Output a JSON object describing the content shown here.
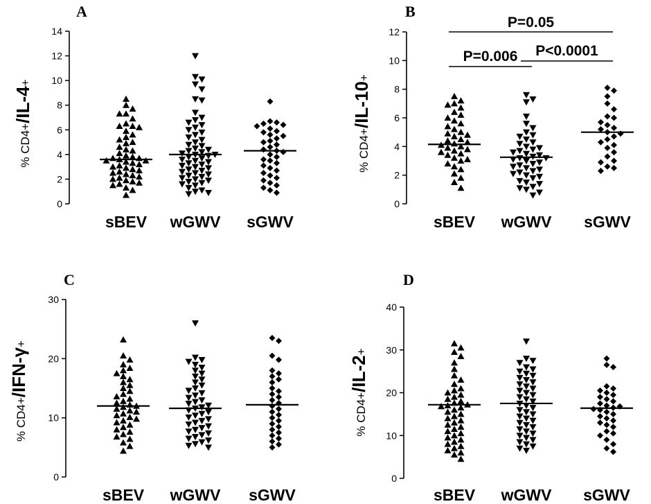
{
  "chart_data": [
    {
      "panel": "A",
      "type": "scatter",
      "ylabel": {
        "prefix": "% CD4+",
        "main": "/IL-4",
        "suffix": "+"
      },
      "categories": [
        "sBEV",
        "wGWV",
        "sGWV"
      ],
      "ylim": [
        0,
        14
      ],
      "yticks": [
        0,
        2,
        4,
        6,
        8,
        10,
        12,
        14
      ],
      "markers": [
        "triangle-up",
        "triangle-down",
        "diamond"
      ],
      "medians": [
        3.6,
        4.0,
        4.3
      ],
      "series": [
        {
          "values": [
            8.5,
            8.0,
            7.7,
            7.3,
            7.3,
            6.9,
            6.5,
            6.3,
            6.3,
            6.2,
            5.9,
            5.6,
            5.4,
            5.2,
            5.0,
            4.9,
            4.6,
            4.4,
            4.3,
            4.1,
            3.9,
            3.8,
            3.7,
            3.7,
            3.6,
            3.5,
            3.5,
            3.4,
            3.3,
            3.2,
            3.1,
            3.0,
            2.9,
            2.8,
            2.7,
            2.6,
            2.5,
            2.4,
            2.3,
            2.2,
            2.1,
            2.0,
            1.9,
            1.8,
            1.7,
            1.6,
            1.5,
            1.3,
            1.1,
            0.7
          ]
        },
        {
          "values": [
            12.0,
            10.3,
            10.1,
            9.7,
            9.3,
            8.5,
            8.4,
            7.4,
            7.0,
            6.8,
            6.6,
            6.4,
            6.2,
            6.0,
            5.8,
            5.6,
            5.4,
            5.2,
            5.0,
            4.8,
            4.7,
            4.5,
            4.4,
            4.3,
            4.2,
            4.1,
            4.0,
            4.0,
            3.9,
            3.8,
            3.7,
            3.6,
            3.5,
            3.4,
            3.3,
            3.2,
            3.1,
            3.0,
            2.9,
            2.8,
            2.7,
            2.6,
            2.5,
            2.4,
            2.3,
            2.2,
            2.1,
            2.0,
            1.9,
            1.8,
            1.7,
            1.6,
            1.5,
            1.3,
            1.1,
            1.0,
            0.9,
            0.8
          ]
        },
        {
          "values": [
            8.3,
            6.7,
            6.6,
            6.5,
            6.4,
            6.3,
            6.1,
            5.9,
            5.8,
            5.6,
            5.5,
            5.3,
            5.1,
            5.0,
            4.8,
            4.6,
            4.4,
            4.3,
            4.2,
            4.0,
            3.8,
            3.6,
            3.5,
            3.3,
            3.1,
            2.9,
            2.7,
            2.5,
            2.3,
            2.1,
            1.9,
            1.7,
            1.5,
            1.3,
            1.1,
            0.9
          ]
        }
      ],
      "annotations": []
    },
    {
      "panel": "B",
      "type": "scatter",
      "ylabel": {
        "prefix": "% CD4+",
        "main": "/IL-10",
        "suffix": "+"
      },
      "categories": [
        "sBEV",
        "wGWV",
        "sGWV"
      ],
      "ylim": [
        0,
        12
      ],
      "yticks": [
        0,
        2,
        4,
        6,
        8,
        10,
        12
      ],
      "markers": [
        "triangle-up",
        "triangle-down",
        "diamond"
      ],
      "medians": [
        4.15,
        3.25,
        5.0
      ],
      "series": [
        {
          "values": [
            7.5,
            7.2,
            7.0,
            6.9,
            6.7,
            6.4,
            6.2,
            6.0,
            5.8,
            5.6,
            5.4,
            5.2,
            5.0,
            4.9,
            4.8,
            4.7,
            4.5,
            4.4,
            4.3,
            4.2,
            4.1,
            4.0,
            3.9,
            3.8,
            3.7,
            3.6,
            3.5,
            3.4,
            3.2,
            3.1,
            3.0,
            2.8,
            2.6,
            2.4,
            2.1,
            1.8,
            1.5,
            1.1
          ]
        },
        {
          "values": [
            7.6,
            7.3,
            7.1,
            6.1,
            5.6,
            5.3,
            5.0,
            4.8,
            4.7,
            4.5,
            4.3,
            4.2,
            4.0,
            3.9,
            3.8,
            3.7,
            3.6,
            3.5,
            3.4,
            3.3,
            3.2,
            3.2,
            3.1,
            3.0,
            2.9,
            2.8,
            2.7,
            2.6,
            2.5,
            2.4,
            2.3,
            2.2,
            2.1,
            2.0,
            1.9,
            1.8,
            1.6,
            1.5,
            1.4,
            1.2,
            1.1,
            1.0,
            0.8,
            0.6
          ]
        },
        {
          "values": [
            8.1,
            7.9,
            7.5,
            7.0,
            6.6,
            6.1,
            6.0,
            5.7,
            5.5,
            5.3,
            5.2,
            5.0,
            4.9,
            4.7,
            4.5,
            4.3,
            4.1,
            3.9,
            3.6,
            3.3,
            3.0,
            2.9,
            2.6,
            2.5,
            2.3
          ]
        }
      ],
      "annotations": [
        {
          "text": "P=0.05",
          "from": 0,
          "to": 2,
          "y": 11.9
        },
        {
          "text": "P=0.006",
          "from": 0,
          "to": 1,
          "y": 9.7
        },
        {
          "text": "P<0.0001",
          "from": 1,
          "to": 2,
          "y": 10.2
        }
      ]
    },
    {
      "panel": "C",
      "type": "scatter",
      "ylabel": {
        "prefix": "% CD4+",
        "main": "/IFN-γ",
        "suffix": "+"
      },
      "categories": [
        "sBEV",
        "wGWV",
        "sGWV"
      ],
      "ylim": [
        0,
        30
      ],
      "yticks": [
        0,
        10,
        20,
        30
      ],
      "markers": [
        "triangle-up",
        "triangle-down",
        "diamond"
      ],
      "medians": [
        12.0,
        11.6,
        12.2
      ],
      "series": [
        {
          "values": [
            23.2,
            20.5,
            19.8,
            19.0,
            18.4,
            18.0,
            17.5,
            17.0,
            16.5,
            16.0,
            15.5,
            15.0,
            14.5,
            14.0,
            13.6,
            13.2,
            12.8,
            12.5,
            12.2,
            12.0,
            11.8,
            11.5,
            11.2,
            11.0,
            10.7,
            10.4,
            10.1,
            9.8,
            9.5,
            9.2,
            8.8,
            8.4,
            8.0,
            7.6,
            7.2,
            6.8,
            6.4,
            5.8,
            5.2,
            4.4
          ]
        },
        {
          "values": [
            26.0,
            20.2,
            19.8,
            19.5,
            19.0,
            18.5,
            18.0,
            17.5,
            17.0,
            16.5,
            16.0,
            15.5,
            15.0,
            14.6,
            14.2,
            13.8,
            13.4,
            13.0,
            12.7,
            12.4,
            12.1,
            11.8,
            11.6,
            11.3,
            11.0,
            10.7,
            10.4,
            10.1,
            9.8,
            9.5,
            9.2,
            8.9,
            8.6,
            8.3,
            8.0,
            7.7,
            7.4,
            7.1,
            6.8,
            6.5,
            6.2,
            5.9,
            5.6,
            5.3,
            5.0
          ]
        },
        {
          "values": [
            23.5,
            23.0,
            20.5,
            19.8,
            18.0,
            17.5,
            17.0,
            16.5,
            16.0,
            15.0,
            14.5,
            14.0,
            13.5,
            13.0,
            12.5,
            12.0,
            11.5,
            11.0,
            10.5,
            10.0,
            9.5,
            9.0,
            8.5,
            8.0,
            7.5,
            7.0,
            6.5,
            6.0,
            5.5,
            5.0
          ]
        }
      ],
      "annotations": []
    },
    {
      "panel": "D",
      "type": "scatter",
      "ylabel": {
        "prefix": "% CD4+",
        "main": "/IL-2",
        "suffix": "+"
      },
      "categories": [
        "sBEV",
        "wGWV",
        "sGWV"
      ],
      "ylim": [
        0,
        40
      ],
      "yticks": [
        0,
        10,
        20,
        30,
        40
      ],
      "markers": [
        "triangle-up",
        "triangle-down",
        "diamond"
      ],
      "medians": [
        17.2,
        17.5,
        16.4
      ],
      "series": [
        {
          "values": [
            31.5,
            30.5,
            29.5,
            28.5,
            27.0,
            25.5,
            24.0,
            23.0,
            22.0,
            21.0,
            20.5,
            20.0,
            19.5,
            19.0,
            18.5,
            18.0,
            17.6,
            17.2,
            17.0,
            16.8,
            16.5,
            16.0,
            15.5,
            15.0,
            14.5,
            14.0,
            13.5,
            13.0,
            12.5,
            12.0,
            11.5,
            11.0,
            10.5,
            10.0,
            9.5,
            9.0,
            8.5,
            8.0,
            7.5,
            7.0,
            6.5,
            6.0,
            5.5,
            4.5
          ]
        },
        {
          "values": [
            32.0,
            28.0,
            27.5,
            27.0,
            26.0,
            25.5,
            25.0,
            24.5,
            24.0,
            23.5,
            23.0,
            22.5,
            22.0,
            21.5,
            21.0,
            20.5,
            20.0,
            19.5,
            19.0,
            18.5,
            18.0,
            17.5,
            17.0,
            16.5,
            16.0,
            15.5,
            15.0,
            14.5,
            14.0,
            13.5,
            13.0,
            12.5,
            12.0,
            11.5,
            11.0,
            10.5,
            10.0,
            9.5,
            9.0,
            8.5,
            8.0,
            7.5,
            7.0,
            6.5
          ]
        },
        {
          "values": [
            28.0,
            26.5,
            26.0,
            21.5,
            21.0,
            20.5,
            20.0,
            19.5,
            19.0,
            18.5,
            18.0,
            17.5,
            17.0,
            16.8,
            16.5,
            16.2,
            16.0,
            15.5,
            15.0,
            14.5,
            14.0,
            13.5,
            13.0,
            12.5,
            12.0,
            11.0,
            10.5,
            10.0,
            9.0,
            8.0,
            7.0,
            6.2
          ]
        }
      ],
      "annotations": []
    }
  ]
}
